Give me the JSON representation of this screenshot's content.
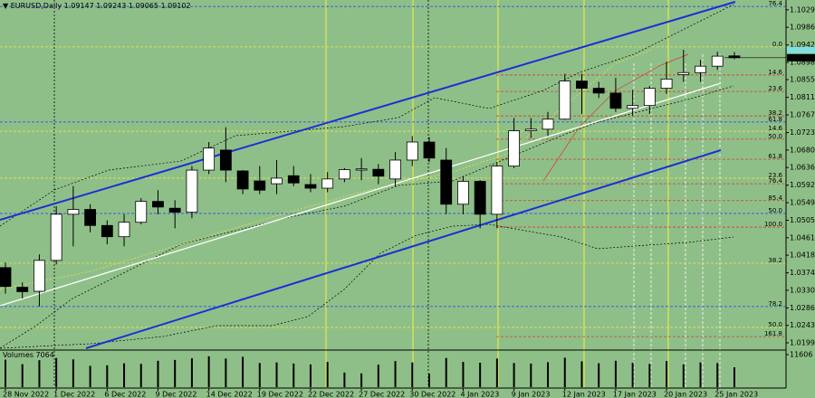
{
  "chart_data": {
    "type": "candlestick",
    "title": "EURUSD,Daily",
    "categories": [
      "28 Nov 2022",
      null,
      null,
      "1 Dec 2022",
      null,
      null,
      "6 Dec 2022",
      null,
      null,
      "9 Dec 2022",
      null,
      null,
      "14 Dec 2022",
      null,
      null,
      "19 Dec 2022",
      null,
      null,
      "22 Dec 2022",
      null,
      null,
      "27 Dec 2022",
      null,
      null,
      "30 Dec 2022",
      null,
      null,
      "4 Jan 2023",
      null,
      null,
      "9 Jan 2023",
      null,
      null,
      "12 Jan 2023",
      null,
      null,
      "17 Jan 2023",
      null,
      null,
      "20 Jan 2023",
      null,
      null,
      "25 Jan 2023",
      null
    ],
    "open": [
      1.0387,
      1.0338,
      1.0328,
      1.0405,
      1.052,
      1.0532,
      1.0492,
      1.0464,
      1.05,
      1.0552,
      1.0535,
      1.0525,
      1.063,
      1.068,
      1.0628,
      1.0603,
      1.0596,
      1.0616,
      1.0594,
      1.0585,
      1.0608,
      1.063,
      1.0632,
      1.0608,
      1.0655,
      1.07,
      1.0655,
      1.0545,
      1.0602,
      1.052,
      1.064,
      1.0728,
      1.0732,
      1.0757,
      1.0852,
      1.0834,
      1.0822,
      1.0784,
      1.0791,
      1.0834,
      1.0868,
      1.0873,
      1.0889,
      1.09147
    ],
    "high": [
      1.04,
      1.035,
      1.042,
      1.054,
      1.059,
      1.0545,
      1.0505,
      1.052,
      1.056,
      1.058,
      1.0555,
      1.064,
      1.07,
      1.0737,
      1.063,
      1.064,
      1.0655,
      1.064,
      1.062,
      1.0625,
      1.0635,
      1.066,
      1.0645,
      1.0675,
      1.0715,
      1.0712,
      1.0685,
      1.0615,
      1.0605,
      1.065,
      1.076,
      1.076,
      1.0775,
      1.087,
      1.087,
      1.085,
      1.086,
      1.083,
      1.084,
      1.09,
      1.093,
      1.0905,
      1.0925,
      1.09243
    ],
    "low": [
      1.0322,
      1.031,
      1.029,
      1.0395,
      1.044,
      1.0475,
      1.0445,
      1.044,
      1.0495,
      1.052,
      1.0485,
      1.051,
      1.062,
      1.06,
      1.057,
      1.057,
      1.057,
      1.059,
      1.0575,
      1.0575,
      1.06,
      1.0605,
      1.0595,
      1.059,
      1.064,
      1.065,
      1.052,
      1.052,
      1.0485,
      1.0485,
      1.0635,
      1.071,
      1.0715,
      1.0755,
      1.077,
      1.081,
      1.0775,
      1.0765,
      1.077,
      1.082,
      1.085,
      1.085,
      1.088,
      1.09065
    ],
    "close": [
      1.034,
      1.0327,
      1.0405,
      1.052,
      1.0532,
      1.0492,
      1.0464,
      1.05,
      1.0552,
      1.0538,
      1.0525,
      1.063,
      1.0685,
      1.063,
      1.0583,
      1.058,
      1.061,
      1.0598,
      1.0585,
      1.0608,
      1.0631,
      1.0633,
      1.0615,
      1.0655,
      1.07,
      1.066,
      1.0545,
      1.0602,
      1.052,
      1.064,
      1.0728,
      1.0732,
      1.0757,
      1.0852,
      1.0834,
      1.0822,
      1.0784,
      1.0791,
      1.0834,
      1.0857,
      1.0873,
      1.0889,
      1.0914,
      1.09102
    ],
    "volumes": [
      9800,
      8200,
      9600,
      10400,
      9900,
      7600,
      7800,
      8500,
      8300,
      9400,
      9700,
      10300,
      11000,
      10200,
      10800,
      8600,
      8800,
      8400,
      8100,
      9000,
      5200,
      4900,
      8000,
      9300,
      8800,
      4800,
      10400,
      9000,
      8700,
      10200,
      8600,
      8400,
      8900,
      10500,
      9200,
      8500,
      9400,
      8700,
      8300,
      9300,
      8100,
      8800,
      8600,
      7064
    ],
    "volume_label": "Volumes",
    "ylim": [
      1.0186,
      1.1054
    ],
    "yticks": [
      1.10295,
      {
        "value": 1.0986,
        "label": "1.09860"
      },
      {
        "value": 1.0942,
        "label": "1.09420"
      },
      1.08985,
      1.08555,
      1.08115,
      1.07675,
      1.07235,
      {
        "value": 1.068,
        "label": "1.06800"
      },
      1.06365,
      1.05925,
      {
        "value": 1.0549,
        "label": "1.05490"
      },
      {
        "value": 1.0505,
        "label": "1.05050"
      },
      1.04615,
      {
        "value": 1.0418,
        "label": "1.04180"
      },
      {
        "value": 1.0374,
        "label": "1.03740"
      },
      1.03305,
      1.02865,
      {
        "value": 1.0243,
        "label": "1.02430"
      },
      1.01995
    ],
    "volume_ylim": [
      0,
      11606
    ],
    "volume_yticks": [
      11606
    ],
    "levels": [
      {
        "label": "76.4",
        "value": 1.1038,
        "color": "#1a3cff"
      },
      {
        "label": "0.0",
        "value": 1.0937,
        "color": "#e8e84a"
      },
      {
        "label": "14.6",
        "value": 1.0867,
        "color": "#d23c2c"
      },
      {
        "label": "23.6",
        "value": 1.0826,
        "color": "#d23c2c"
      },
      {
        "label": "38.2",
        "value": 1.0765,
        "color": "#d23c2c"
      },
      {
        "label": "61.8",
        "value": 1.075,
        "color": "#1a3cff"
      },
      {
        "label": "14.6",
        "value": 1.0727,
        "color": "#e8e84a"
      },
      {
        "label": "50.0",
        "value": 1.0707,
        "color": "#d23c2c"
      },
      {
        "label": "61.8",
        "value": 1.0657,
        "color": "#d23c2c"
      },
      {
        "label": "23.6",
        "value": 1.061,
        "color": "#e8e84a"
      },
      {
        "label": "76.4",
        "value": 1.0596,
        "color": "#d23c2c"
      },
      {
        "label": "85.4",
        "value": 1.0554,
        "color": "#d23c2c"
      },
      {
        "label": "50.0",
        "value": 1.0522,
        "color": "#1a3cff"
      },
      {
        "label": "100.0",
        "value": 1.0488,
        "color": "#d23c2c"
      },
      {
        "label": "38.2",
        "value": 1.0398,
        "color": "#e8e84a"
      },
      {
        "label": "78.2",
        "value": 1.029,
        "color": "#1a3cff"
      },
      {
        "label": "50.0",
        "value": 1.0238,
        "color": "#e8e84a"
      },
      {
        "label": "161.8",
        "value": 1.0215,
        "color": "#d23c2c"
      }
    ],
    "up_color": "#ffffff",
    "down_color": "#000000",
    "background": "#8fbf88"
  }
}
